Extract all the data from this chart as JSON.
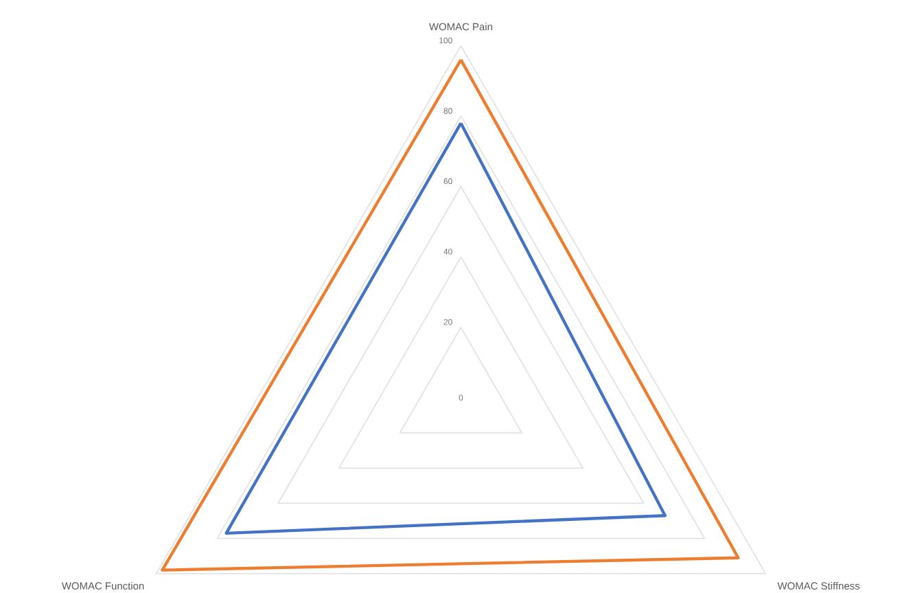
{
  "chart_data": {
    "type": "radar",
    "categories": [
      "WOMAC Pain",
      "WOMAC Stiffness",
      "WOMAC Function"
    ],
    "ylim": [
      0,
      100
    ],
    "yticks": [
      0,
      20,
      40,
      60,
      80,
      100
    ],
    "grid": true,
    "marker": "none",
    "line_style": "solid",
    "series": [
      {
        "color": "#ed7d31",
        "values": [
          96,
          91,
          98
        ]
      },
      {
        "color": "#4472c4",
        "values": [
          78,
          67,
          77
        ]
      }
    ]
  }
}
